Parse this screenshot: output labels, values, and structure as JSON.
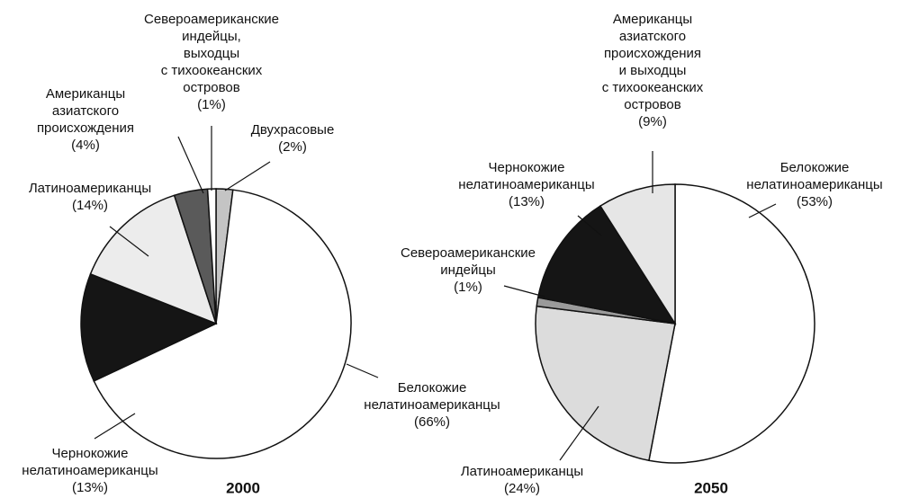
{
  "chart_data": [
    {
      "type": "pie",
      "title": "2000",
      "categories": [
        "Двухрасовые",
        "Белокожие\nнелатиноамериканцы",
        "Чернокожие\nнелатиноамериканцы",
        "Латиноамериканцы",
        "Американцы\nазиатского\nпроисхождения",
        "Североамериканские\nиндейцы,\nвыходцы\nс тихоокеанских\nостровов"
      ],
      "values": [
        2,
        66,
        13,
        14,
        4,
        1
      ],
      "value_labels": [
        "(2%)",
        "(66%)",
        "(13%)",
        "(14%)",
        "(4%)",
        "(1%)"
      ],
      "colors": [
        "#c4c4c4",
        "#ffffff",
        "#151515",
        "#ececec",
        "#5a5a5a",
        "#ffffff"
      ]
    },
    {
      "type": "pie",
      "title": "2050",
      "categories": [
        "Белокожие\nнелатиноамериканцы",
        "Латиноамериканцы",
        "Североамериканские\nиндейцы",
        "Чернокожие\nнелатиноамериканцы",
        "Американцы\nазиатского\nпроисхождения\nи выходцы\nс тихоокеанских\nостровов"
      ],
      "values": [
        53,
        24,
        1,
        13,
        9
      ],
      "value_labels": [
        "(53%)",
        "(24%)",
        "(1%)",
        "(13%)",
        "(9%)"
      ],
      "colors": [
        "#ffffff",
        "#dcdcdc",
        "#9a9a9a",
        "#151515",
        "#e6e6e6"
      ]
    }
  ]
}
